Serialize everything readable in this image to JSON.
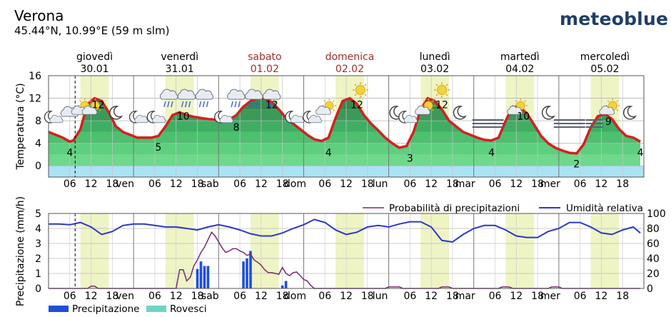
{
  "header": {
    "city": "Verona",
    "coordinates": "45.44°N, 10.99°E (59 m slm)",
    "logo": "meteoblue"
  },
  "colors": {
    "weekend_day": "#a0302a",
    "day_band": "#eef4c4",
    "temp_line": "#d42020",
    "humidity_line": "#2e37c8",
    "precip_prob_line": "#7a2a6e",
    "precip_bar": "#1f4fd8",
    "showers_bar": "#6fd3c6",
    "logo": "#1f3e66"
  },
  "days": [
    {
      "name": "giovedì",
      "date": "30.01",
      "weekend": false
    },
    {
      "name": "venerdì",
      "date": "31.01",
      "weekend": false
    },
    {
      "name": "sabato",
      "date": "01.02",
      "weekend": true
    },
    {
      "name": "domenica",
      "date": "02.02",
      "weekend": true
    },
    {
      "name": "lunedì",
      "date": "03.02",
      "weekend": false
    },
    {
      "name": "martedì",
      "date": "04.02",
      "weekend": false
    },
    {
      "name": "mercoledì",
      "date": "05.02",
      "weekend": false
    }
  ],
  "x_tick_labels": [
    "06",
    "12",
    "18",
    "ven",
    "06",
    "12",
    "18",
    "sab",
    "06",
    "12",
    "18",
    "dom",
    "06",
    "12",
    "18",
    "lun",
    "06",
    "12",
    "18",
    "mar",
    "06",
    "12",
    "18",
    "mer",
    "06",
    "12",
    "18"
  ],
  "chart_data": [
    {
      "type": "area",
      "ylabel": "Temperatura (°C)",
      "ylim": [
        -2,
        16
      ],
      "yticks": [
        0,
        4,
        8,
        12,
        16
      ],
      "x_unit": "hours since 30.01 00:00",
      "x": [
        0,
        2,
        4,
        6,
        7,
        9,
        11,
        13,
        15,
        17,
        19,
        21,
        23,
        25,
        27,
        29,
        31,
        33,
        35,
        37,
        39,
        41,
        43,
        45,
        47,
        49,
        51,
        53,
        55,
        57,
        59,
        61,
        63,
        65,
        67,
        69,
        71,
        73,
        75,
        77,
        79,
        81,
        83,
        85,
        87,
        89,
        91,
        93,
        95,
        97,
        99,
        101,
        103,
        105,
        107,
        109,
        111,
        113,
        115,
        117,
        119,
        121,
        123,
        125,
        127,
        129,
        131,
        133,
        135,
        137,
        139,
        141,
        143,
        145,
        147,
        149,
        151,
        153,
        155,
        157,
        159,
        161,
        163,
        165,
        167
      ],
      "temperature": [
        6,
        5.5,
        5,
        4.3,
        4.5,
        6.5,
        11,
        12,
        11.5,
        9.5,
        7,
        6,
        5.5,
        5,
        5,
        5,
        5.3,
        7,
        9,
        9.5,
        9,
        8.7,
        8.5,
        8.3,
        8.2,
        8.1,
        8.2,
        9,
        10.5,
        11.5,
        12,
        12,
        11.3,
        10,
        8.5,
        7.5,
        6.5,
        5.5,
        4.7,
        4.4,
        5,
        8.5,
        11.5,
        12,
        11,
        9,
        7.5,
        6.3,
        5,
        4,
        3.2,
        3.5,
        6,
        10,
        12,
        11.5,
        10,
        8,
        7,
        6,
        5.5,
        5,
        4.6,
        4.5,
        5,
        8,
        10.5,
        10.5,
        9.3,
        7.3,
        5.3,
        4,
        3.2,
        2.7,
        2.3,
        2.2,
        3.8,
        6.8,
        8.8,
        9.2,
        8.3,
        6.5,
        5.3,
        5,
        4.3
      ],
      "point_labels": [
        {
          "x": 6,
          "value": "4"
        },
        {
          "x": 14,
          "value": "12"
        },
        {
          "x": 31,
          "value": "5"
        },
        {
          "x": 38,
          "value": "10"
        },
        {
          "x": 53,
          "value": "8"
        },
        {
          "x": 63,
          "value": "12"
        },
        {
          "x": 79,
          "value": "4"
        },
        {
          "x": 87,
          "value": "12"
        },
        {
          "x": 102,
          "value": "3"
        },
        {
          "x": 111,
          "value": "12"
        },
        {
          "x": 125,
          "value": "4"
        },
        {
          "x": 134,
          "value": "10"
        },
        {
          "x": 149,
          "value": "2"
        },
        {
          "x": 158,
          "value": "9"
        },
        {
          "x": 167,
          "value": "4"
        }
      ],
      "weather_icons": [
        {
          "x": 1,
          "icon": "moon-cloud-icon"
        },
        {
          "x": 6,
          "icon": "cloud-icon"
        },
        {
          "x": 9,
          "icon": "sun-cloud-icon"
        },
        {
          "x": 12,
          "icon": "sun-cloud-icon"
        },
        {
          "x": 19,
          "icon": "moon-icon"
        },
        {
          "x": 25,
          "icon": "moon-cloud-icon"
        },
        {
          "x": 30,
          "icon": "moon-cloud-icon"
        },
        {
          "x": 34,
          "icon": "rain-cloud-icon"
        },
        {
          "x": 39,
          "icon": "rain-cloud-icon"
        },
        {
          "x": 44,
          "icon": "rain-cloud-icon"
        },
        {
          "x": 49,
          "icon": "moon-cloud-icon"
        },
        {
          "x": 53,
          "icon": "rain-cloud-icon"
        },
        {
          "x": 58,
          "icon": "rain-cloud-icon"
        },
        {
          "x": 63,
          "icon": "rain-cloud-icon"
        },
        {
          "x": 69,
          "icon": "moon-cloud-icon"
        },
        {
          "x": 74,
          "icon": "moon-cloud-icon"
        },
        {
          "x": 78,
          "icon": "sun-cloud-icon"
        },
        {
          "x": 88,
          "icon": "sun-icon"
        },
        {
          "x": 98,
          "icon": "moon-icon"
        },
        {
          "x": 101,
          "icon": "moon-cloud-icon"
        },
        {
          "x": 106,
          "icon": "sun-cloud-icon"
        },
        {
          "x": 111,
          "icon": "sun-icon"
        },
        {
          "x": 116,
          "icon": "moon-icon"
        },
        {
          "x": 122,
          "icon": "fog-icon"
        },
        {
          "x": 126,
          "icon": "fog-icon"
        },
        {
          "x": 132,
          "icon": "sun-cloud-icon"
        },
        {
          "x": 141,
          "icon": "moon-icon"
        },
        {
          "x": 145,
          "icon": "fog-icon"
        },
        {
          "x": 149,
          "icon": "fog-icon"
        },
        {
          "x": 154,
          "icon": "fog-icon"
        },
        {
          "x": 158,
          "icon": "sun-cloud-icon"
        },
        {
          "x": 164,
          "icon": "moon-icon"
        }
      ],
      "grid": true
    },
    {
      "type": "bar",
      "ylabel": "Precipitazione (mm/h)",
      "ylim": [
        0,
        5
      ],
      "yticks": [
        0,
        1,
        2,
        3,
        4,
        5
      ],
      "y2lim": [
        0,
        100
      ],
      "y2ticks": [
        0,
        20,
        40,
        60,
        80,
        100
      ],
      "legend": [
        {
          "name": "Precipitazione",
          "color": "#1f4fd8"
        },
        {
          "name": "Rovesci",
          "color": "#6fd3c6"
        }
      ],
      "legend_position": "bottom-left",
      "series": [
        {
          "name": "Precipitazione",
          "type": "bar",
          "x": [
            42,
            43,
            44,
            45,
            55,
            56,
            57,
            66,
            67
          ],
          "values": [
            1.3,
            1.8,
            1.5,
            1.5,
            1.8,
            2.0,
            2.5,
            0.2,
            0.5
          ]
        },
        {
          "name": "Probabilità di precipitazioni",
          "type": "line",
          "axis": "right",
          "x": [
            0,
            4,
            5,
            6,
            7,
            8,
            10,
            11,
            12,
            13,
            14,
            15,
            16,
            17,
            18,
            21,
            22,
            23,
            24,
            25,
            27,
            28,
            29,
            30,
            31,
            33,
            34,
            35,
            36,
            37,
            38,
            39,
            40,
            41,
            42,
            43,
            44,
            45,
            46,
            47,
            48,
            49,
            50,
            51,
            52,
            53,
            54,
            55,
            56,
            57,
            58,
            59,
            60,
            61,
            62,
            63,
            64,
            65,
            66,
            67,
            68,
            69,
            70,
            71,
            72,
            73,
            74,
            75,
            76,
            77,
            78,
            79,
            80,
            81,
            84,
            95,
            96,
            97,
            99,
            100,
            101,
            110,
            111,
            112,
            113,
            114,
            118,
            120,
            127,
            128,
            129,
            130,
            131,
            132,
            141,
            142,
            143,
            144,
            145,
            146,
            167
          ],
          "values": [
            0,
            0,
            0,
            0,
            0,
            0,
            0,
            0,
            3,
            3,
            0,
            0,
            0,
            0,
            0,
            0,
            0,
            0,
            0,
            0,
            0,
            0,
            0,
            0,
            0,
            0,
            0,
            0,
            0,
            25,
            25,
            10,
            15,
            30,
            38,
            48,
            55,
            65,
            75,
            70,
            62,
            54,
            48,
            50,
            53,
            53,
            50,
            48,
            44,
            46,
            38,
            35,
            31,
            25,
            21,
            21,
            20,
            19,
            28,
            20,
            17,
            21,
            22,
            17,
            12,
            10,
            4,
            0,
            0,
            0,
            0,
            0,
            0,
            0,
            0,
            0,
            2,
            2,
            2,
            0,
            0,
            0,
            2,
            2,
            2,
            0,
            0,
            0,
            0,
            2,
            2,
            2,
            0,
            0,
            0,
            2,
            2,
            2,
            0,
            0,
            0
          ]
        },
        {
          "name": "Umidità relativa",
          "type": "line",
          "axis": "right",
          "x": [
            0,
            3,
            6,
            9,
            12,
            15,
            18,
            21,
            24,
            27,
            30,
            33,
            36,
            39,
            42,
            45,
            48,
            51,
            54,
            57,
            60,
            63,
            66,
            69,
            72,
            75,
            78,
            81,
            84,
            87,
            90,
            93,
            96,
            99,
            102,
            105,
            108,
            111,
            114,
            117,
            120,
            123,
            126,
            129,
            132,
            135,
            138,
            141,
            144,
            147,
            150,
            153,
            156,
            159,
            162,
            165,
            167
          ],
          "values": [
            86,
            86,
            85,
            88,
            82,
            72,
            76,
            84,
            86,
            86,
            84,
            82,
            82,
            80,
            78,
            82,
            85,
            82,
            78,
            73,
            70,
            70,
            74,
            80,
            85,
            92,
            88,
            78,
            72,
            75,
            82,
            84,
            82,
            86,
            89,
            89,
            82,
            64,
            62,
            72,
            80,
            84,
            84,
            78,
            70,
            68,
            68,
            76,
            80,
            88,
            88,
            82,
            74,
            72,
            78,
            82,
            74
          ]
        }
      ],
      "grid": true
    }
  ]
}
